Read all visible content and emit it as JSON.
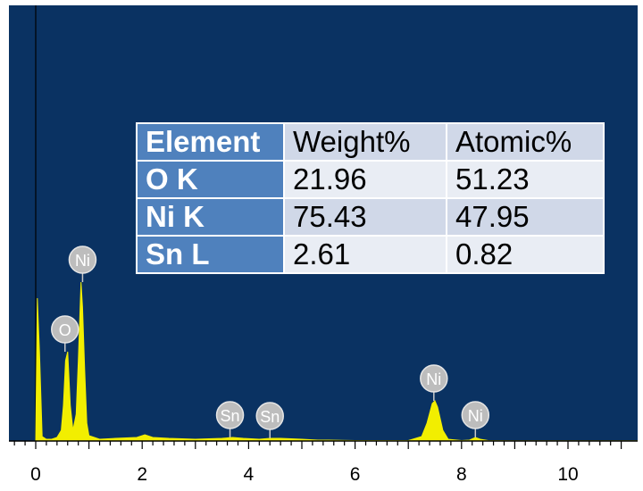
{
  "chart_data": {
    "type": "line",
    "title": "",
    "xlabel": "",
    "ylabel": "",
    "xlim": [
      -0.5,
      11.3
    ],
    "x_ticks": [
      "0",
      "2",
      "4",
      "6",
      "8",
      "10"
    ],
    "background_color": "#0a3262",
    "spectrum_color": "#f2ee00",
    "series": [
      {
        "x": [
          0.0,
          0.03,
          0.07,
          0.12,
          0.2,
          0.3,
          0.4,
          0.48,
          0.52,
          0.56,
          0.6,
          0.65,
          0.7,
          0.76,
          0.8,
          0.85,
          0.88,
          0.92,
          0.96,
          1.0,
          1.1,
          1.2,
          1.5,
          1.9,
          2.05,
          2.2,
          2.5,
          3.0,
          3.5,
          3.7,
          3.9,
          4.2,
          4.4,
          4.6,
          5.0,
          5.3,
          5.5,
          6.0,
          6.5,
          7.0,
          7.25,
          7.35,
          7.45,
          7.5,
          7.55,
          7.65,
          7.75,
          8.0,
          8.15,
          8.26,
          8.35,
          8.5,
          9.0,
          10.0,
          11.3
        ],
        "y": [
          0,
          160,
          100,
          5,
          2,
          2,
          4,
          12,
          40,
          90,
          100,
          40,
          12,
          30,
          90,
          178,
          150,
          80,
          20,
          6,
          4,
          2,
          3,
          4,
          7,
          4,
          3,
          2,
          3,
          4,
          3,
          2,
          3,
          3,
          2,
          1,
          1,
          0.5,
          0.5,
          0.5,
          5,
          20,
          42,
          45,
          38,
          12,
          2,
          0.5,
          1,
          4,
          2,
          0.5,
          0.3,
          0.2,
          0.2
        ]
      }
    ],
    "peak_labels": [
      {
        "text": "O",
        "x": 0.55,
        "y": 100
      },
      {
        "text": "Ni",
        "x": 0.88,
        "y": 178
      },
      {
        "text": "Sn",
        "x": 3.65,
        "y": 4
      },
      {
        "text": "Sn",
        "x": 4.4,
        "y": 3
      },
      {
        "text": "Ni",
        "x": 7.48,
        "y": 45
      },
      {
        "text": "Ni",
        "x": 8.26,
        "y": 4
      }
    ]
  },
  "table": {
    "headers": [
      "Element",
      "Weight%",
      "Atomic%"
    ],
    "rows": [
      [
        "O K",
        "21.96",
        "51.23"
      ],
      [
        "Ni K",
        "75.43",
        "47.95"
      ],
      [
        "Sn L",
        "2.61",
        "0.82"
      ]
    ]
  }
}
